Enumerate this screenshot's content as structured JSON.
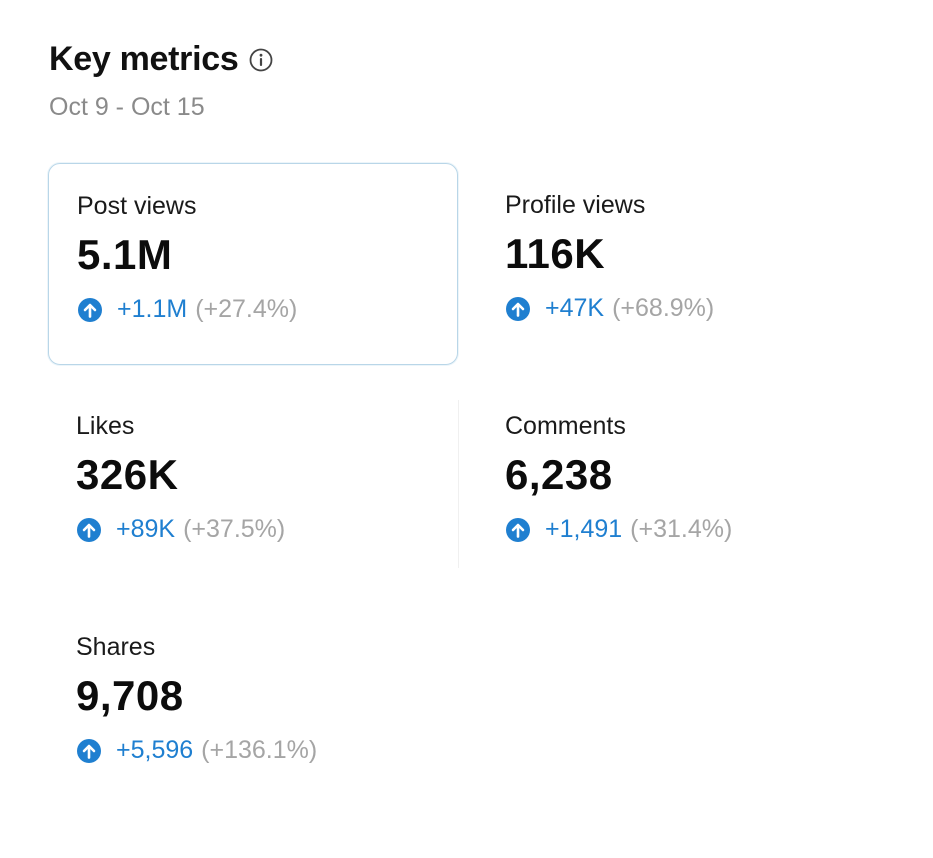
{
  "header": {
    "title": "Key metrics",
    "date_range": "Oct 9 - Oct 15"
  },
  "metrics": [
    {
      "label": "Post views",
      "value": "5.1M",
      "delta": "+1.1M",
      "percent": "(+27.4%)",
      "selected": true
    },
    {
      "label": "Profile views",
      "value": "116K",
      "delta": "+47K",
      "percent": "(+68.9%)",
      "selected": false
    },
    {
      "label": "Likes",
      "value": "326K",
      "delta": "+89K",
      "percent": "(+37.5%)",
      "selected": false
    },
    {
      "label": "Comments",
      "value": "6,238",
      "delta": "+1,491",
      "percent": "(+31.4%)",
      "selected": false
    },
    {
      "label": "Shares",
      "value": "9,708",
      "delta": "+5,596",
      "percent": "(+136.1%)",
      "selected": false
    }
  ],
  "icons": {
    "info": "info-circle-icon",
    "trend_up": "arrow-up-circle-icon"
  },
  "colors": {
    "accent": "#1f7fd0",
    "selected_border": "#b9d6e8",
    "muted_text": "#8a8a8a"
  }
}
